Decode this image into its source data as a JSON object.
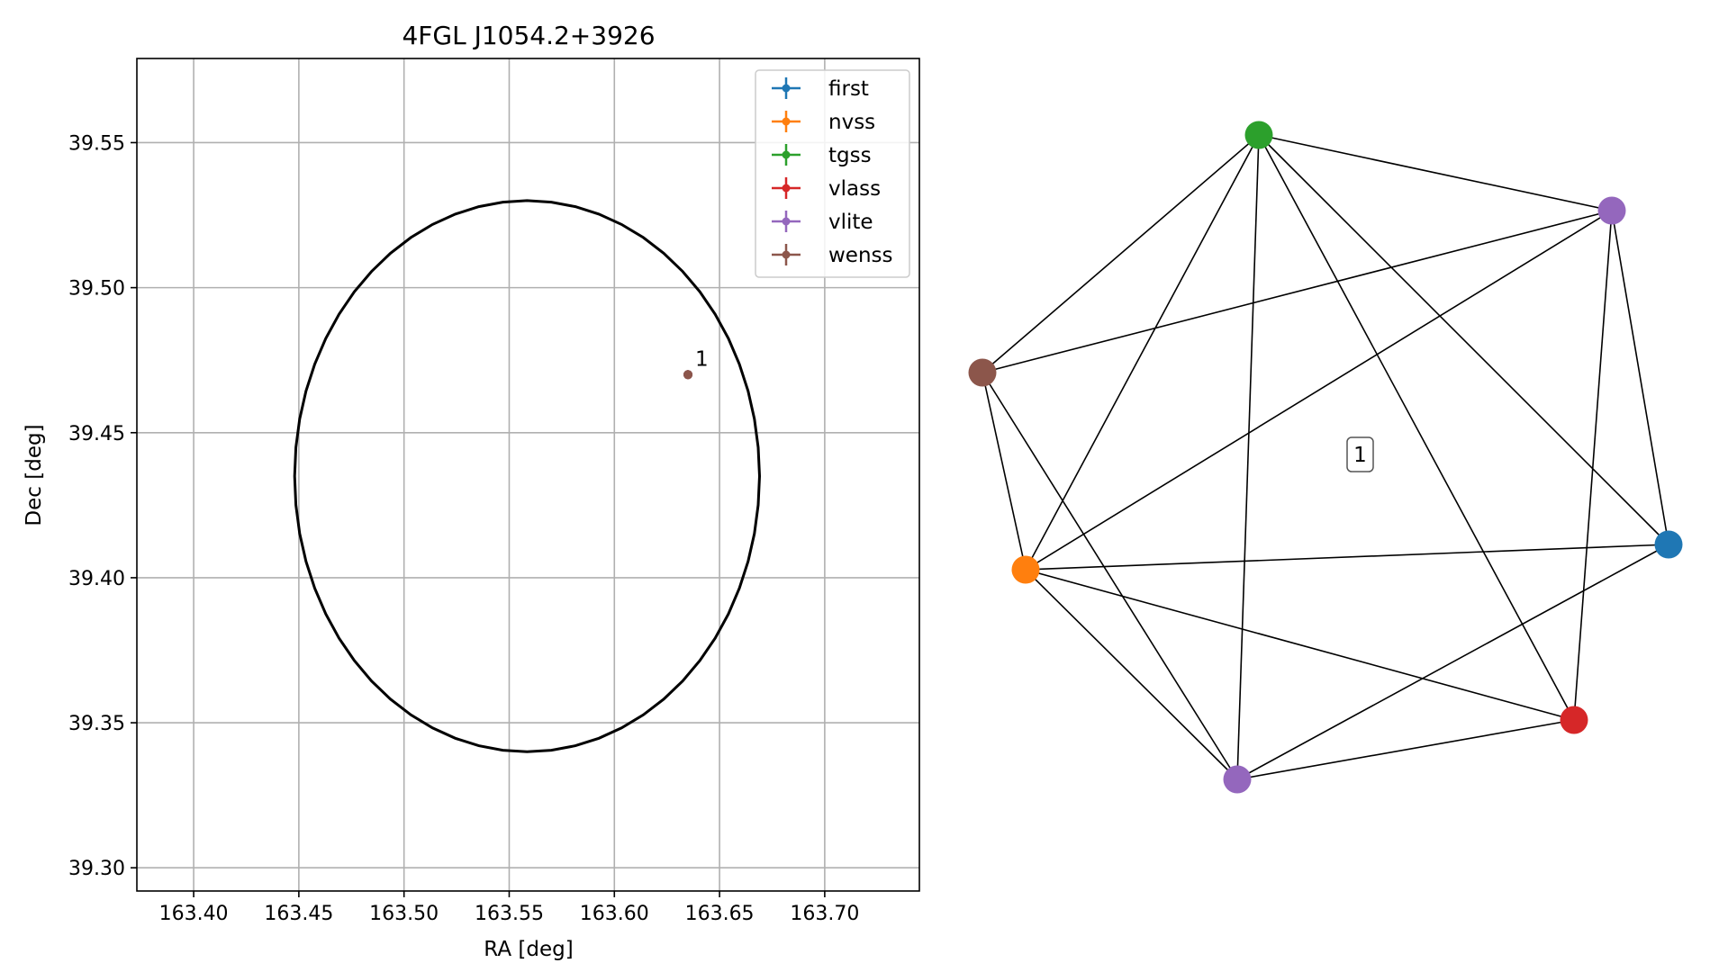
{
  "chart_data": [
    {
      "type": "scatter",
      "title": "4FGL J1054.2+3926",
      "xlabel": "RA [deg]",
      "ylabel": "Dec [deg]",
      "xlim": [
        163.373,
        163.745
      ],
      "ylim": [
        39.292,
        39.579
      ],
      "xticks": [
        163.4,
        163.45,
        163.5,
        163.55,
        163.6,
        163.65,
        163.7
      ],
      "xtick_labels": [
        "163.40",
        "163.45",
        "163.50",
        "163.55",
        "163.60",
        "163.65",
        "163.70"
      ],
      "yticks": [
        39.3,
        39.35,
        39.4,
        39.45,
        39.5,
        39.55
      ],
      "ytick_labels": [
        "39.30",
        "39.35",
        "39.40",
        "39.45",
        "39.50",
        "39.55"
      ],
      "grid": true,
      "legend_position": "top-right",
      "ellipse": {
        "center_ra": 163.5585,
        "center_dec": 39.435,
        "semi_axis_ra": 0.1105,
        "semi_axis_dec": 0.095,
        "color": "#000000"
      },
      "series": [
        {
          "name": "first",
          "color": "#1f77b4",
          "points": [
            {
              "x": 163.635,
              "y": 39.47
            }
          ]
        },
        {
          "name": "nvss",
          "color": "#ff7f0e",
          "points": [
            {
              "x": 163.635,
              "y": 39.47
            }
          ]
        },
        {
          "name": "tgss",
          "color": "#2ca02c",
          "points": [
            {
              "x": 163.635,
              "y": 39.47
            }
          ]
        },
        {
          "name": "vlass",
          "color": "#d62728",
          "points": [
            {
              "x": 163.635,
              "y": 39.47
            }
          ]
        },
        {
          "name": "vlite",
          "color": "#9467bd",
          "points": [
            {
              "x": 163.635,
              "y": 39.47
            }
          ]
        },
        {
          "name": "wenss",
          "color": "#8c564b",
          "points": [
            {
              "x": 163.635,
              "y": 39.47
            }
          ]
        }
      ],
      "annotations": [
        {
          "text": "1",
          "x": 163.635,
          "y": 39.47
        }
      ]
    },
    {
      "type": "network",
      "component_label": "1",
      "nodes": [
        {
          "id": "tgss",
          "color": "#2ca02c"
        },
        {
          "id": "vlite_a",
          "color": "#9467bd"
        },
        {
          "id": "wenss",
          "color": "#8c564b"
        },
        {
          "id": "first",
          "color": "#1f77b4"
        },
        {
          "id": "nvss",
          "color": "#ff7f0e"
        },
        {
          "id": "vlass",
          "color": "#d62728"
        },
        {
          "id": "vlite_b",
          "color": "#9467bd"
        }
      ],
      "edges": [
        [
          "tgss",
          "vlite_a"
        ],
        [
          "tgss",
          "wenss"
        ],
        [
          "tgss",
          "first"
        ],
        [
          "tgss",
          "nvss"
        ],
        [
          "tgss",
          "vlass"
        ],
        [
          "tgss",
          "vlite_b"
        ],
        [
          "vlite_a",
          "wenss"
        ],
        [
          "vlite_a",
          "first"
        ],
        [
          "vlite_a",
          "nvss"
        ],
        [
          "vlite_a",
          "vlass"
        ],
        [
          "wenss",
          "nvss"
        ],
        [
          "wenss",
          "vlite_b"
        ],
        [
          "first",
          "nvss"
        ],
        [
          "first",
          "vlite_b"
        ],
        [
          "nvss",
          "vlass"
        ],
        [
          "nvss",
          "vlite_b"
        ],
        [
          "vlass",
          "vlite_b"
        ]
      ]
    }
  ]
}
